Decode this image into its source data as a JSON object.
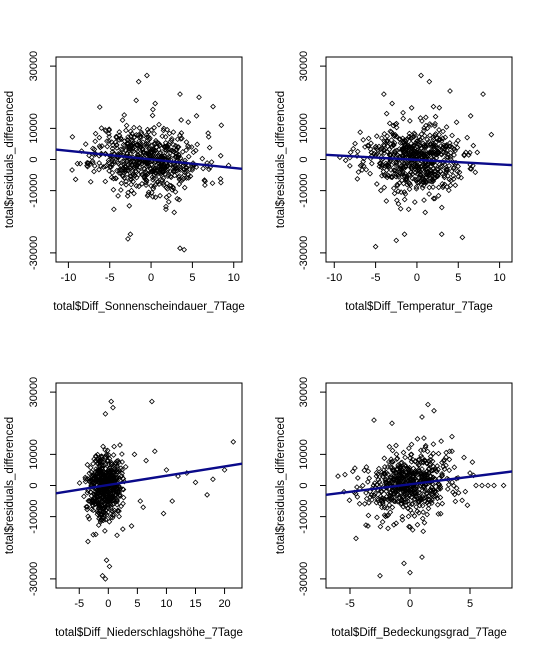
{
  "chart_data": [
    {
      "type": "scatter",
      "xlabel": "total$Diff_Sonnenscheindauer_7Tage",
      "ylabel": "total$residuals_differenced",
      "xlim": [
        -11.5,
        11
      ],
      "ylim": [
        -31000,
        31000
      ],
      "xticks": [
        -10,
        -5,
        0,
        5,
        10
      ],
      "yticks": [
        -30000,
        -10000,
        0,
        10000,
        30000
      ],
      "ytick_labels": [
        "-30000",
        "-10000",
        "0",
        "10000",
        "30000"
      ],
      "point_color": "#000000",
      "line_color": "#0a0a8a",
      "regression": {
        "x": [
          -11.5,
          11
        ],
        "y": [
          3200,
          -3000
        ]
      },
      "cloud": {
        "n": 620,
        "seed": 11,
        "x_center": -0.5,
        "x_sd": 3.2,
        "y_sd": 5200
      },
      "outliers": [
        [
          -1.5,
          25000
        ],
        [
          -0.5,
          27000
        ],
        [
          3.5,
          21000
        ],
        [
          5.8,
          20000
        ],
        [
          -2.5,
          -24000
        ],
        [
          -2.8,
          -25500
        ],
        [
          3.5,
          -28500
        ],
        [
          4.0,
          -29000
        ],
        [
          2.8,
          -17000
        ],
        [
          1.8,
          -16000
        ],
        [
          7.5,
          17000
        ],
        [
          8.5,
          11000
        ],
        [
          5.5,
          14000
        ],
        [
          4.5,
          12000
        ],
        [
          -4.5,
          -16000
        ],
        [
          -1.8,
          19000
        ],
        [
          0.5,
          18000
        ]
      ]
    },
    {
      "type": "scatter",
      "xlabel": "total$Diff_Temperatur_7Tage",
      "ylabel": "total$residuals_differenced",
      "xlim": [
        -11,
        11.5
      ],
      "ylim": [
        -31000,
        31000
      ],
      "xticks": [
        -10,
        -5,
        0,
        5,
        10
      ],
      "yticks": [
        -30000,
        -10000,
        0,
        10000,
        30000
      ],
      "ytick_labels": [
        "-30000",
        "-10000",
        "0",
        "10000",
        "30000"
      ],
      "point_color": "#000000",
      "line_color": "#0a0a8a",
      "regression": {
        "x": [
          -11,
          11.5
        ],
        "y": [
          1500,
          -1800
        ]
      },
      "cloud": {
        "n": 620,
        "seed": 23,
        "x_center": -0.5,
        "x_sd": 3.0,
        "y_sd": 5400
      },
      "outliers": [
        [
          -4.0,
          21000
        ],
        [
          0.5,
          27000
        ],
        [
          1.5,
          25000
        ],
        [
          4.0,
          22000
        ],
        [
          8.0,
          21000
        ],
        [
          -3.0,
          18000
        ],
        [
          -1.5,
          -24000
        ],
        [
          -2.5,
          -26000
        ],
        [
          -5.0,
          -28000
        ],
        [
          3.0,
          -24000
        ],
        [
          5.5,
          -25000
        ],
        [
          1.0,
          -17000
        ],
        [
          -1.0,
          -16000
        ],
        [
          2.0,
          17000
        ],
        [
          6.5,
          14000
        ],
        [
          9.0,
          8000
        ]
      ]
    },
    {
      "type": "scatter",
      "xlabel": "total$Diff_Niederschlagshöhe_7Tage",
      "ylabel": "total$residuals_differenced",
      "xlim": [
        -9,
        23
      ],
      "ylim": [
        -31000,
        31000
      ],
      "xticks": [
        -5,
        0,
        5,
        10,
        15,
        20
      ],
      "yticks": [
        -30000,
        -10000,
        0,
        10000,
        30000
      ],
      "ytick_labels": [
        "-30000",
        "-10000",
        "0",
        "10000",
        "30000"
      ],
      "point_color": "#000000",
      "line_color": "#0a0a8a",
      "regression": {
        "x": [
          -9,
          23
        ],
        "y": [
          -2500,
          7000
        ]
      },
      "cloud": {
        "n": 520,
        "seed": 37,
        "x_center": -0.6,
        "x_sd": 1.4,
        "y_sd": 5200
      },
      "outliers": [
        [
          0.5,
          27000
        ],
        [
          0.8,
          25000
        ],
        [
          -0.5,
          23000
        ],
        [
          7.5,
          27000
        ],
        [
          -0.3,
          -24000
        ],
        [
          0.2,
          -26000
        ],
        [
          -1.0,
          -29000
        ],
        [
          -0.5,
          -30000
        ],
        [
          2.5,
          -14000
        ],
        [
          1.5,
          -16000
        ],
        [
          -3.5,
          -18000
        ],
        [
          8.0,
          11000
        ],
        [
          10.0,
          5000
        ],
        [
          12.0,
          3000
        ],
        [
          15.0,
          1000
        ],
        [
          17.0,
          -3000
        ],
        [
          20.0,
          5000
        ],
        [
          21.5,
          14000
        ],
        [
          5.5,
          -5000
        ],
        [
          6.5,
          8000
        ],
        [
          9.5,
          -9000
        ],
        [
          4.5,
          10000
        ],
        [
          3.0,
          6000
        ],
        [
          2.0,
          13000
        ],
        [
          13.5,
          4000
        ],
        [
          18.0,
          2000
        ],
        [
          11.0,
          -5000
        ],
        [
          6.0,
          -7000
        ],
        [
          4.0,
          -13000
        ]
      ]
    },
    {
      "type": "scatter",
      "xlabel": "total$Diff_Bedeckungsgrad_7Tage",
      "ylabel": "total$residuals_differenced",
      "xlim": [
        -7,
        8.5
      ],
      "ylim": [
        -31000,
        31000
      ],
      "xticks": [
        -5,
        0,
        5
      ],
      "yticks": [
        -30000,
        -10000,
        0,
        10000,
        30000
      ],
      "ytick_labels": [
        "-30000",
        "-10000",
        "0",
        "10000",
        "30000"
      ],
      "point_color": "#000000",
      "line_color": "#0a0a8a",
      "regression": {
        "x": [
          -7,
          8.5
        ],
        "y": [
          -3000,
          4500
        ]
      },
      "cloud": {
        "n": 600,
        "seed": 53,
        "x_center": 0.0,
        "x_sd": 1.9,
        "y_sd": 5200
      },
      "outliers": [
        [
          1.5,
          26000
        ],
        [
          2.0,
          24000
        ],
        [
          1.0,
          22000
        ],
        [
          -3.0,
          21000
        ],
        [
          -1.5,
          20000
        ],
        [
          -2.5,
          -29000
        ],
        [
          -0.5,
          -25000
        ],
        [
          0.0,
          -28000
        ],
        [
          1.0,
          -23000
        ],
        [
          -4.5,
          -17000
        ],
        [
          -3.5,
          -13000
        ],
        [
          5.5,
          0
        ],
        [
          6.0,
          0
        ],
        [
          6.5,
          0
        ],
        [
          7.0,
          0
        ],
        [
          7.8,
          0
        ],
        [
          -6.0,
          3000
        ],
        [
          -5.5,
          -2000
        ],
        [
          4.5,
          9000
        ],
        [
          5.0,
          4000
        ],
        [
          3.5,
          11000
        ]
      ]
    }
  ]
}
